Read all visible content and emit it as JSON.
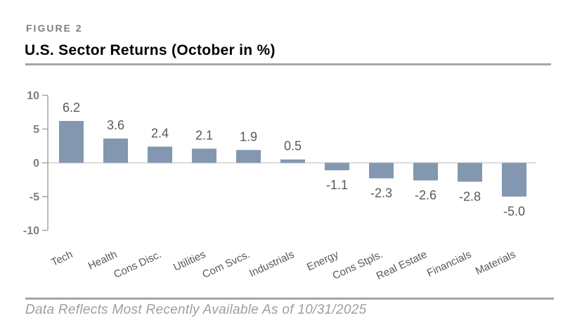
{
  "header": {
    "figure_label": "FIGURE 2",
    "title": "U.S. Sector Returns (October in %)"
  },
  "footer": {
    "footnote": "Data Reflects Most Recently Available As of 10/31/2025"
  },
  "colors": {
    "bar": "#8497b1",
    "axis_line": "#a6a6a6",
    "zero_gridline": "#d9d9d9",
    "tick_label": "#808080",
    "data_label": "#595959",
    "category_label": "#595959",
    "figure_label": "#7f7f7f",
    "rule": "#a6a6a6",
    "footnote": "#9e9e9e"
  },
  "chart_data": {
    "type": "bar",
    "title": "U.S. Sector Returns (October in %)",
    "categories": [
      "Tech",
      "Health",
      "Cons Disc.",
      "Utilities",
      "Com Svcs.",
      "Industrials",
      "Energy",
      "Cons Stpls.",
      "Real Estate",
      "Financials",
      "Materials"
    ],
    "values": [
      6.2,
      3.6,
      2.4,
      2.1,
      1.9,
      0.5,
      -1.1,
      -2.3,
      -2.6,
      -2.8,
      -5.0
    ],
    "value_labels": [
      "6.2",
      "3.6",
      "2.4",
      "2.1",
      "1.9",
      "0.5",
      "-1.1",
      "-2.3",
      "-2.6",
      "-2.8",
      "-5.0"
    ],
    "xlabel": "",
    "ylabel": "",
    "ylim": [
      -10,
      10
    ],
    "yticks": [
      10,
      5,
      0,
      -5,
      -10
    ],
    "grid": false,
    "legend": false,
    "bar_color": "#8497b1",
    "category_label_rotation_deg": -25
  }
}
